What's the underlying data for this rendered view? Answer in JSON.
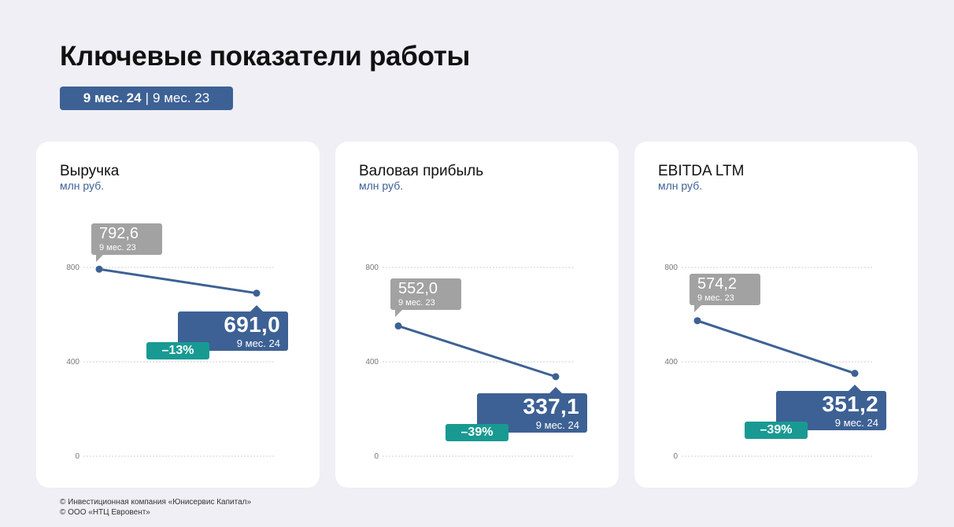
{
  "header": {
    "title": "Ключевые показатели работы",
    "period_current": "9 мес. 24",
    "period_separator": "|",
    "period_previous": "9 мес. 23"
  },
  "colors": {
    "accent": "#3d6194",
    "previous": "#a2a2a2",
    "change": "#189a93",
    "background": "#efeff5"
  },
  "cards": [
    {
      "title": "Выручка",
      "unit": "млн руб.",
      "change_label": "–13%",
      "prev_value_label": "792,6",
      "prev_period_label": "9 мес. 23",
      "cur_value_label": "691,0",
      "cur_period_label": "9 мес. 24"
    },
    {
      "title": "Валовая прибыль",
      "unit": "млн руб.",
      "change_label": "–39%",
      "prev_value_label": "552,0",
      "prev_period_label": "9 мес. 23",
      "cur_value_label": "337,1",
      "cur_period_label": "9 мес. 24"
    },
    {
      "title": "EBITDA LTM",
      "unit": "млн руб.",
      "change_label": "–39%",
      "prev_value_label": "574,2",
      "prev_period_label": "9 мес. 23",
      "cur_value_label": "351,2",
      "cur_period_label": "9 мес. 24"
    }
  ],
  "chart_data": [
    {
      "type": "line",
      "title": "Выручка",
      "ylabel": "млн руб.",
      "x": [
        "9 мес. 23",
        "9 мес. 24"
      ],
      "series": [
        {
          "values": [
            792.6,
            691.0
          ]
        }
      ],
      "ylim": [
        0,
        800
      ],
      "yticks": [
        0,
        400,
        800
      ],
      "grid": true,
      "legend": "none"
    },
    {
      "type": "line",
      "title": "Валовая прибыль",
      "ylabel": "млн руб.",
      "x": [
        "9 мес. 23",
        "9 мес. 24"
      ],
      "series": [
        {
          "values": [
            552.0,
            337.1
          ]
        }
      ],
      "ylim": [
        0,
        800
      ],
      "yticks": [
        0,
        400,
        800
      ],
      "grid": true,
      "legend": "none"
    },
    {
      "type": "line",
      "title": "EBITDA LTM",
      "ylabel": "млн руб.",
      "x": [
        "9 мес. 23",
        "9 мес. 24"
      ],
      "series": [
        {
          "values": [
            574.2,
            351.2
          ]
        }
      ],
      "ylim": [
        0,
        800
      ],
      "yticks": [
        0,
        400,
        800
      ],
      "grid": true,
      "legend": "none"
    }
  ],
  "footer": {
    "line1": "© Инвестиционная компания «Юнисервис Капитал»",
    "line2": "© ООО «НТЦ Евровент»"
  }
}
